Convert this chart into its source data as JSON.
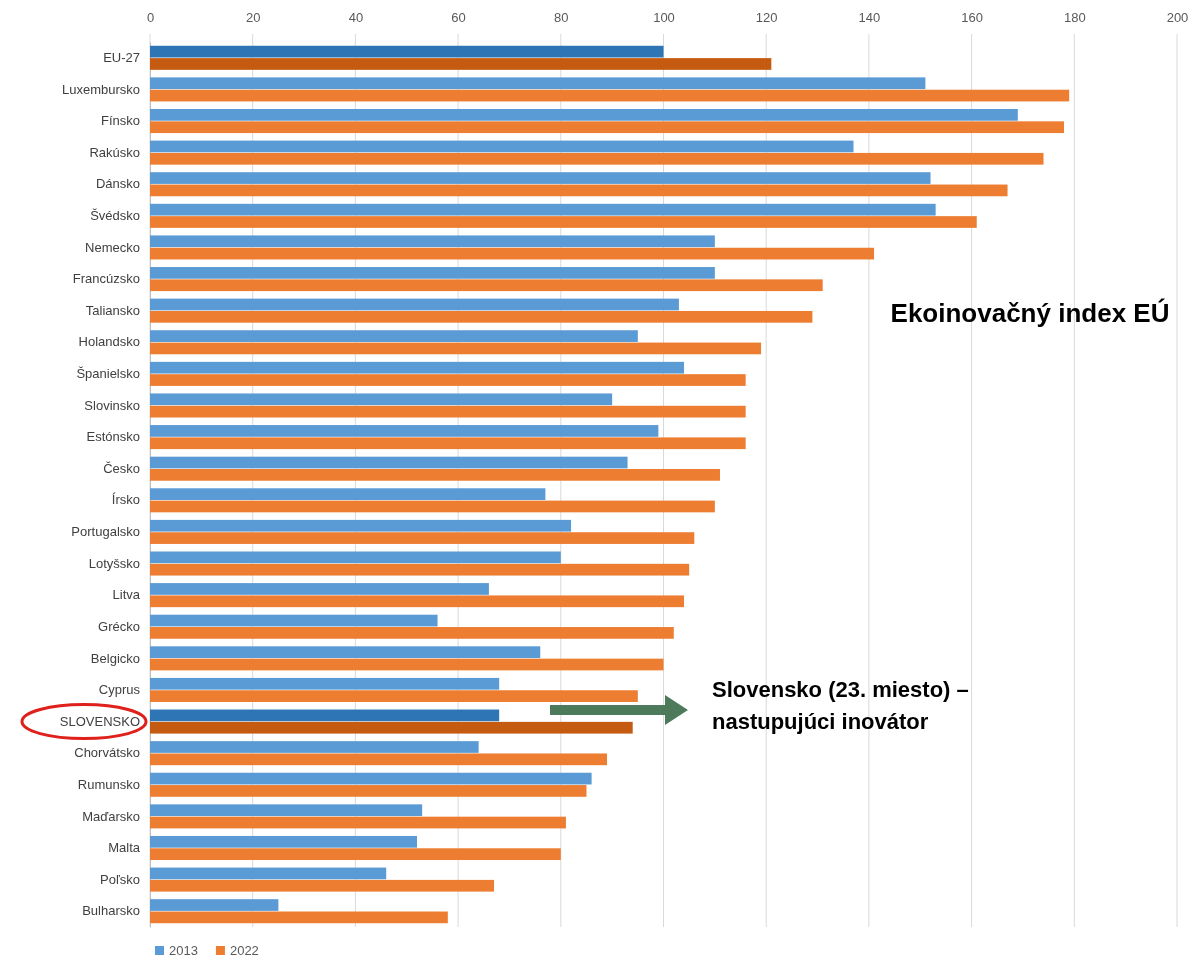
{
  "chart_data": {
    "type": "bar",
    "orientation": "horizontal",
    "title": "Ekoinovačný index EÚ",
    "categories": [
      "EU-27",
      "Luxembursko",
      "Fínsko",
      "Rakúsko",
      "Dánsko",
      "Švédsko",
      "Nemecko",
      "Francúzsko",
      "Taliansko",
      "Holandsko",
      "Španielsko",
      "Slovinsko",
      "Estónsko",
      "Česko",
      "Írsko",
      "Portugalsko",
      "Lotyšsko",
      "Litva",
      "Grécko",
      "Belgicko",
      "Cyprus",
      "SLOVENSKO",
      "Chorvátsko",
      "Rumunsko",
      "Maďarsko",
      "Malta",
      "Poľsko",
      "Bulharsko"
    ],
    "series": [
      {
        "name": "2013",
        "color": "#5b9bd5",
        "colors": [
          "#2e75b6",
          "#5b9bd5",
          "#5b9bd5",
          "#5b9bd5",
          "#5b9bd5",
          "#5b9bd5",
          "#5b9bd5",
          "#5b9bd5",
          "#5b9bd5",
          "#5b9bd5",
          "#5b9bd5",
          "#5b9bd5",
          "#5b9bd5",
          "#5b9bd5",
          "#5b9bd5",
          "#5b9bd5",
          "#5b9bd5",
          "#5b9bd5",
          "#5b9bd5",
          "#5b9bd5",
          "#5b9bd5",
          "#2e75b6",
          "#5b9bd5",
          "#5b9bd5",
          "#5b9bd5",
          "#5b9bd5",
          "#5b9bd5",
          "#5b9bd5"
        ],
        "values": [
          100,
          151,
          169,
          137,
          152,
          153,
          110,
          110,
          103,
          95,
          104,
          90,
          99,
          93,
          77,
          82,
          80,
          66,
          56,
          76,
          68,
          68,
          64,
          86,
          53,
          52,
          46,
          25
        ]
      },
      {
        "name": "2022",
        "color": "#ed7d31",
        "colors": [
          "#c55a11",
          "#ed7d31",
          "#ed7d31",
          "#ed7d31",
          "#ed7d31",
          "#ed7d31",
          "#ed7d31",
          "#ed7d31",
          "#ed7d31",
          "#ed7d31",
          "#ed7d31",
          "#ed7d31",
          "#ed7d31",
          "#ed7d31",
          "#ed7d31",
          "#ed7d31",
          "#ed7d31",
          "#ed7d31",
          "#ed7d31",
          "#ed7d31",
          "#ed7d31",
          "#c55a11",
          "#ed7d31",
          "#ed7d31",
          "#ed7d31",
          "#ed7d31",
          "#ed7d31",
          "#ed7d31"
        ],
        "values": [
          121,
          179,
          178,
          174,
          167,
          161,
          141,
          131,
          129,
          119,
          116,
          116,
          116,
          111,
          110,
          106,
          105,
          104,
          102,
          100,
          95,
          94,
          89,
          85,
          81,
          80,
          67,
          58
        ]
      }
    ],
    "xlim": [
      0,
      200
    ],
    "xticks": [
      0,
      20,
      40,
      60,
      80,
      100,
      120,
      140,
      160,
      180,
      200
    ],
    "grid": "x",
    "legend": "bottom left",
    "annotations": [
      "Slovensko (23. miesto) – nastupujúci inovátor"
    ]
  }
}
